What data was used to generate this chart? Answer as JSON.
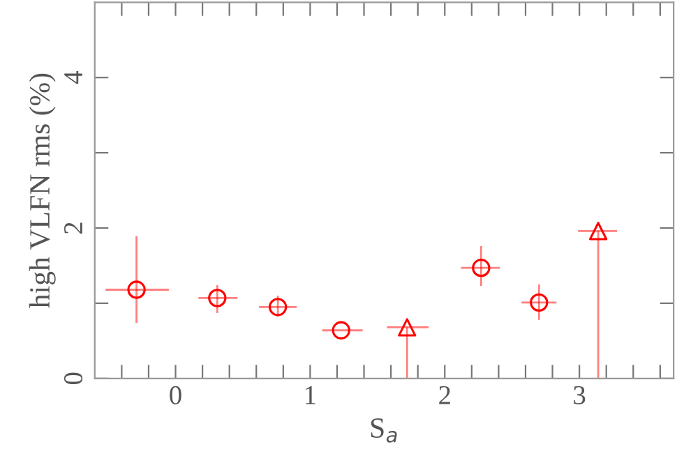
{
  "chart_data": {
    "type": "scatter",
    "xlabel": "S$_{a}$",
    "ylabel": "high VLFN rms (%)",
    "xlim": [
      -0.6,
      3.7
    ],
    "ylim": [
      0,
      5
    ],
    "xticks": [
      {
        "value": -0.4,
        "label": null
      },
      {
        "value": -0.2,
        "label": null
      },
      0,
      {
        "value": 0.2,
        "label": null
      },
      {
        "value": 0.4,
        "label": null
      },
      {
        "value": 0.6,
        "label": null
      },
      {
        "value": 0.8,
        "label": null
      },
      1,
      {
        "value": 1.2,
        "label": null
      },
      {
        "value": 1.4,
        "label": null
      },
      {
        "value": 1.6,
        "label": null
      },
      {
        "value": 1.8,
        "label": null
      },
      2,
      {
        "value": 2.2,
        "label": null
      },
      {
        "value": 2.4,
        "label": null
      },
      {
        "value": 2.6,
        "label": null
      },
      {
        "value": 2.8,
        "label": null
      },
      3,
      {
        "value": 3.2,
        "label": null
      },
      {
        "value": 3.4,
        "label": null
      },
      {
        "value": 3.6,
        "label": null
      }
    ],
    "yticks": [
      0,
      {
        "value": 1,
        "label": null
      },
      2,
      {
        "value": 3,
        "label": null
      },
      4
    ],
    "grid": false,
    "legend": false,
    "series": [
      {
        "color": "#ff0000",
        "marker": "circle",
        "x": [
          -0.29,
          0.31,
          0.76,
          1.23,
          2.27,
          2.7
        ],
        "values": [
          1.18,
          1.07,
          0.95,
          0.64,
          1.47,
          1.01
        ],
        "errors": [
          [
            0.74,
            1.89
          ],
          [
            0.87,
            1.24
          ],
          [
            0.82,
            1.1
          ],
          null,
          [
            1.23,
            1.76
          ],
          [
            0.78,
            1.25
          ]
        ],
        "xerrors": [
          [
            -0.52,
            -0.05
          ],
          [
            0.17,
            0.46
          ],
          [
            0.62,
            0.9
          ],
          [
            1.09,
            1.39
          ],
          [
            2.12,
            2.41
          ],
          [
            2.57,
            2.83
          ]
        ]
      },
      {
        "color": "#ff0000",
        "marker": "triangle",
        "x": [
          1.72,
          3.14
        ],
        "values": [
          0.68,
          1.96
        ],
        "errors": [
          [
            0,
            0.68
          ],
          [
            0,
            1.96
          ]
        ],
        "xerrors": [
          [
            1.57,
            1.88
          ],
          [
            2.99,
            3.28
          ]
        ]
      }
    ]
  }
}
